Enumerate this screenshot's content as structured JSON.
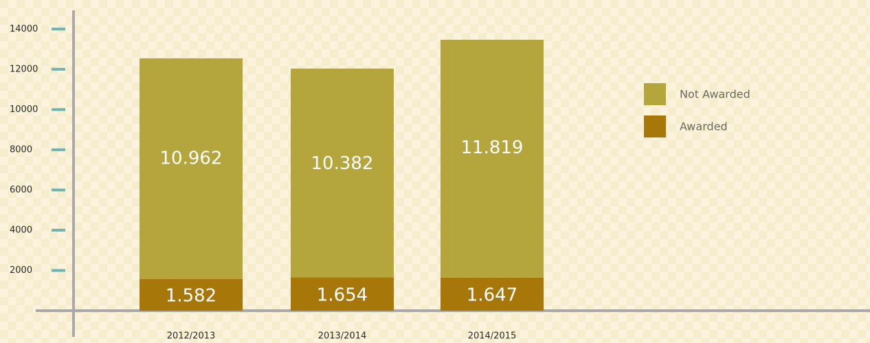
{
  "chart_data": {
    "type": "stacked_bar",
    "categories": [
      "2012/2013",
      "2013/2014",
      "2014/2015"
    ],
    "series": [
      {
        "name": "Awarded",
        "color": "#a8770a",
        "values": [
          1582,
          1654,
          1647
        ],
        "value_labels": [
          "1.582",
          "1.654",
          "1.647"
        ]
      },
      {
        "name": "Not Awarded",
        "color": "#b4a63c",
        "values": [
          10962,
          10382,
          11819
        ],
        "value_labels": [
          "10.962",
          "10.382",
          "11.819"
        ]
      }
    ],
    "ylim": [
      0,
      15000
    ],
    "yticks": [
      2000,
      4000,
      6000,
      8000,
      10000,
      12000,
      14000
    ],
    "legend": "right"
  }
}
